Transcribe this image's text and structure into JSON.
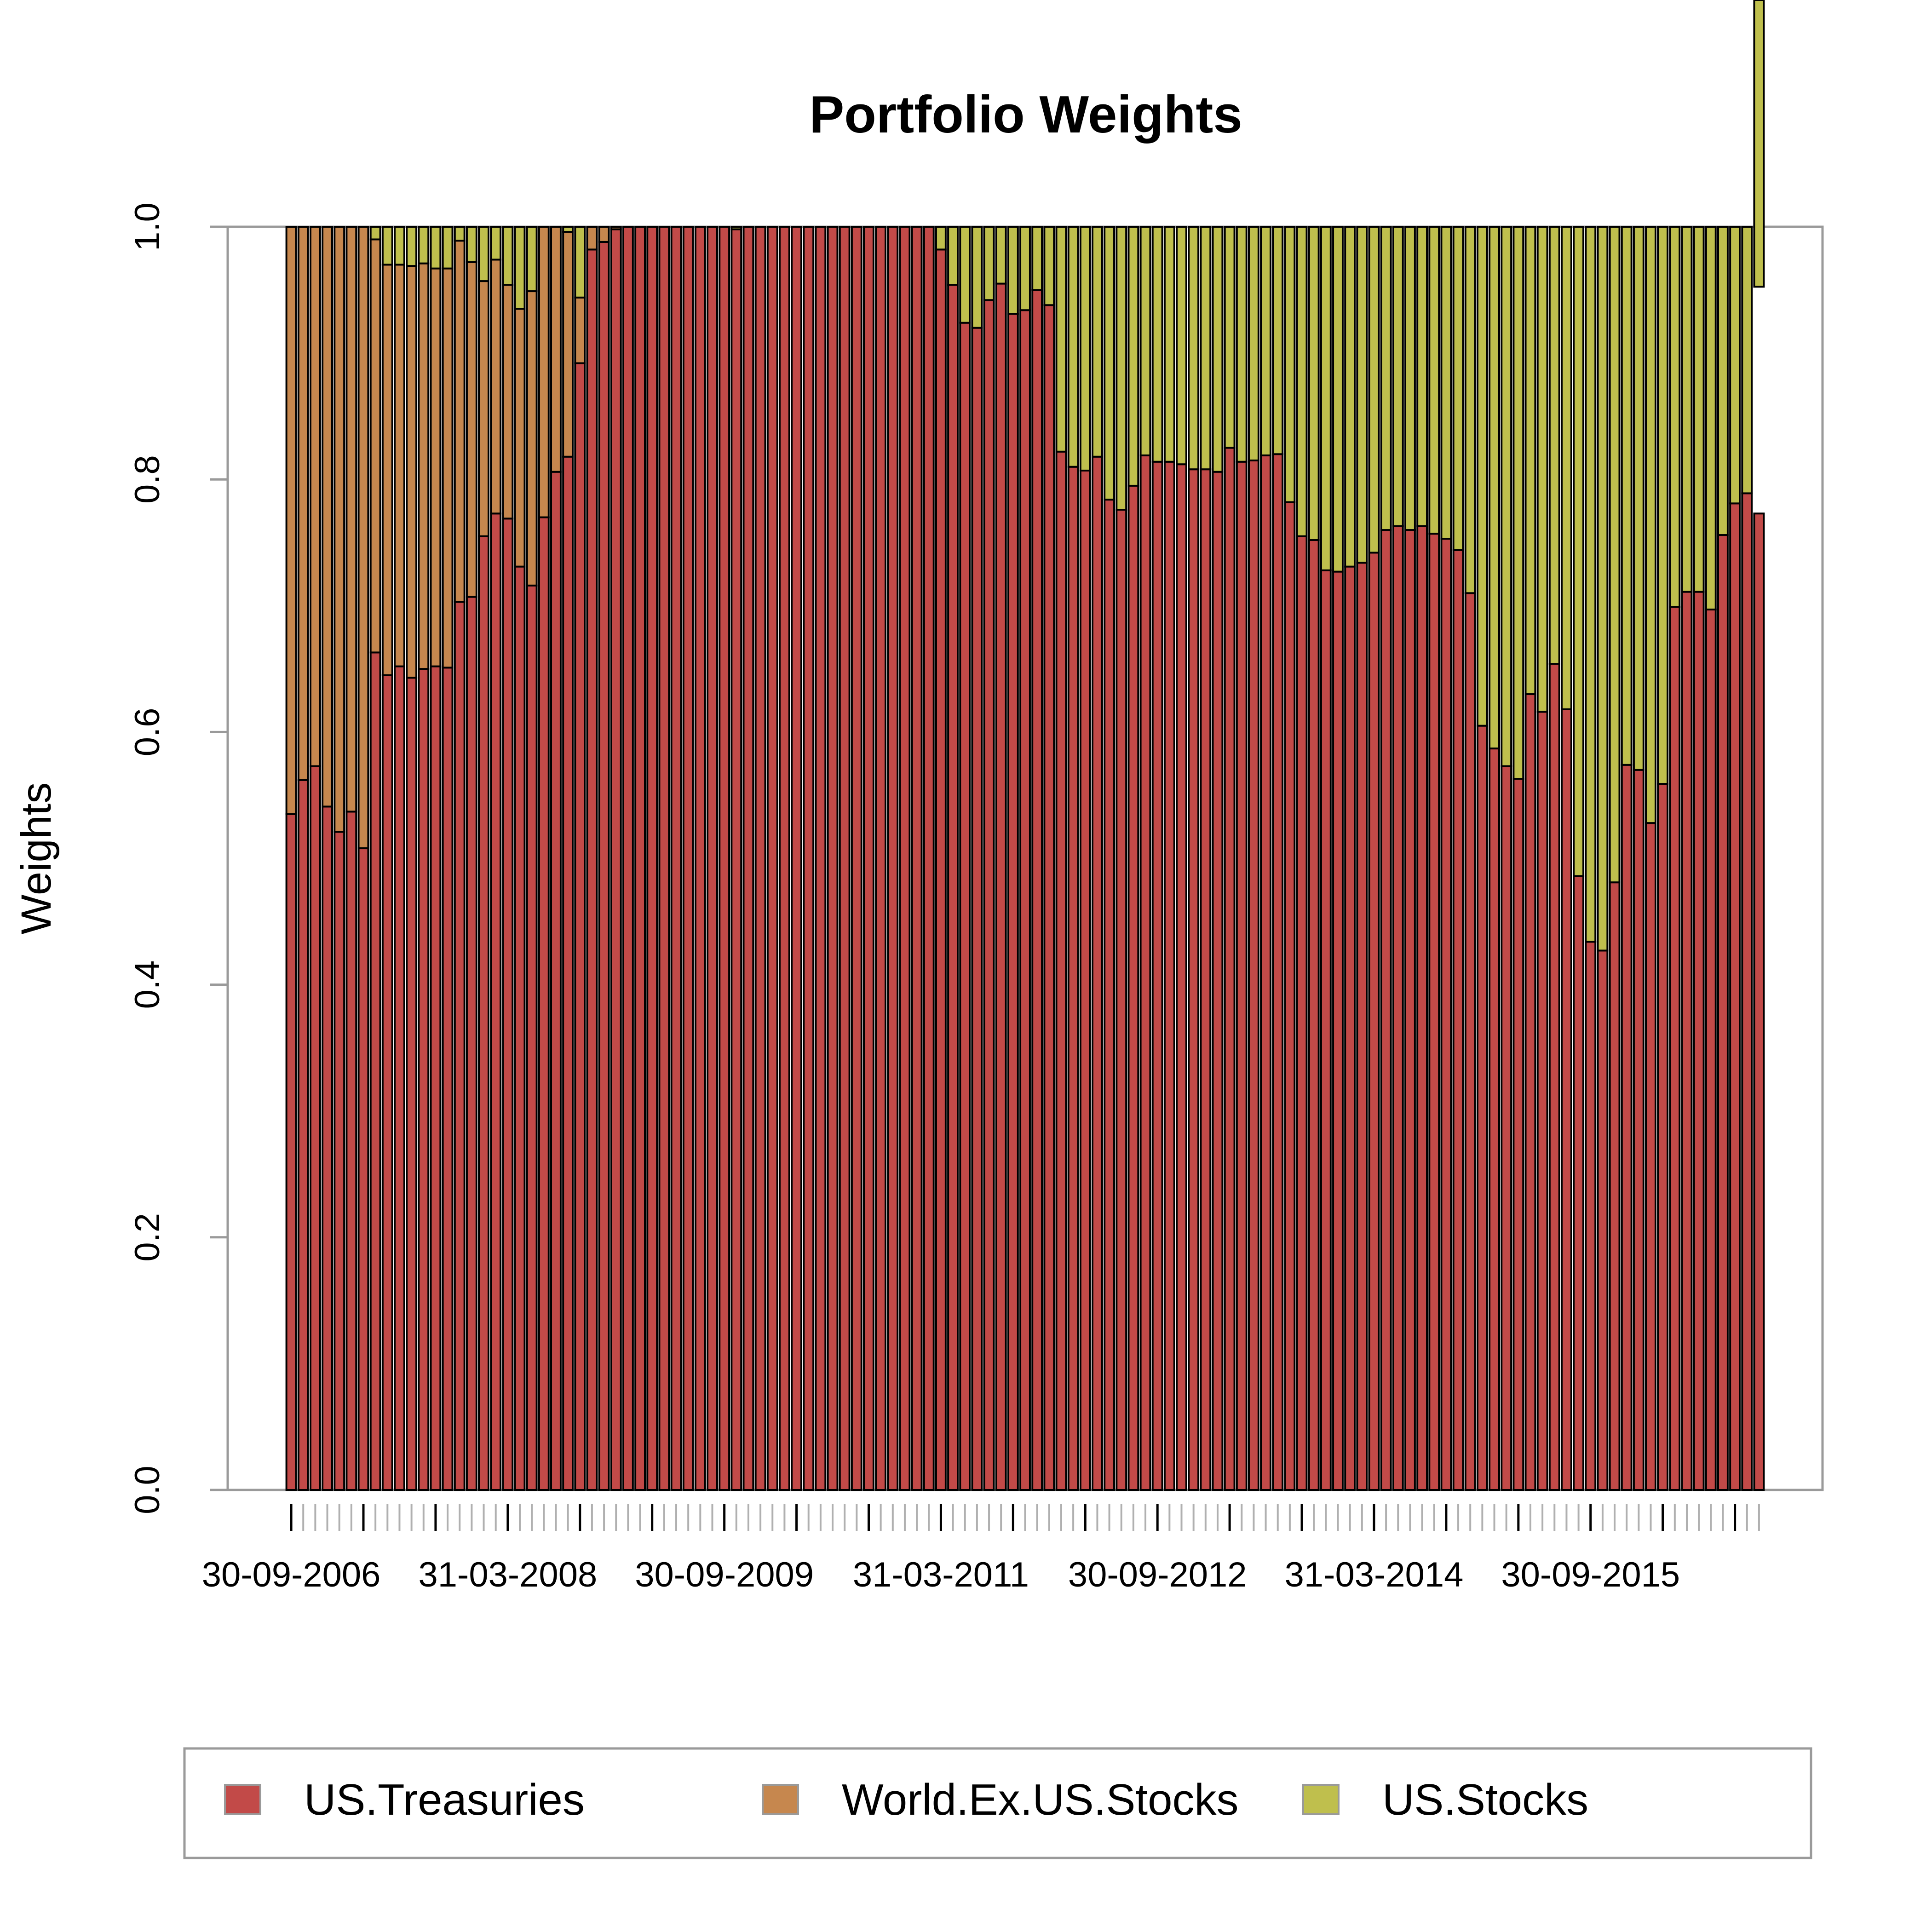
{
  "chart_data": {
    "type": "bar",
    "stacked": true,
    "title": "Portfolio Weights",
    "ylabel": "Weights",
    "xlabel": "",
    "ylim": [
      0,
      1
    ],
    "yticks": [
      "0.0",
      "0.2",
      "0.4",
      "0.6",
      "0.8",
      "1.0"
    ],
    "xtick_labels": [
      "30-09-2006",
      "31-03-2008",
      "30-09-2009",
      "31-03-2011",
      "30-09-2012",
      "31-03-2014",
      "30-09-2015"
    ],
    "frequency": "monthly",
    "start_month": "30-09-2006",
    "legend_position": "bottom",
    "colors": {
      "US.Treasuries": "#c24a48",
      "World.Ex.US.Stocks": "#c6874e",
      "US.Stocks": "#bfbf4d"
    },
    "series": [
      {
        "name": "US.Treasuries",
        "values": [
          0.535,
          0.562,
          0.573,
          0.541,
          0.521,
          0.537,
          0.508,
          0.663,
          0.645,
          0.652,
          0.643,
          0.65,
          0.652,
          0.651,
          0.703,
          0.707,
          0.755,
          0.773,
          0.769,
          0.731,
          0.716,
          0.77,
          0.806,
          0.818,
          0.892,
          0.982,
          0.988,
          0.998,
          1,
          1,
          1,
          1,
          1,
          1,
          1,
          1,
          1,
          0.998,
          1,
          1,
          1,
          1,
          1,
          1,
          1,
          1,
          1,
          1,
          1,
          1,
          1,
          1,
          1,
          1,
          0.982,
          0.954,
          0.924,
          0.92,
          0.942,
          0.955,
          0.931,
          0.934,
          0.95,
          0.938,
          0.822,
          0.81,
          0.807,
          0.818,
          0.784,
          0.776,
          0.795,
          0.819,
          0.814,
          0.814,
          0.812,
          0.808,
          0.808,
          0.806,
          0.825,
          0.814,
          0.815,
          0.819,
          0.82,
          0.782,
          0.755,
          0.752,
          0.728,
          0.727,
          0.731,
          0.734,
          0.742,
          0.76,
          0.763,
          0.76,
          0.763,
          0.757,
          0.753,
          0.744,
          0.71,
          0.605,
          0.587,
          0.573,
          0.563,
          0.63,
          0.616,
          0.654,
          0.618,
          0.486,
          0.434,
          0.427,
          0.481,
          0.574,
          0.57,
          0.528,
          0.559,
          0.699,
          0.711,
          0.711,
          0.697,
          0.756,
          0.781,
          0.789,
          0.773
        ]
      },
      {
        "name": "World.Ex.US.Stocks",
        "values": [
          0.465,
          0.438,
          0.427,
          0.459,
          0.479,
          0.463,
          0.492,
          0.327,
          0.325,
          0.318,
          0.326,
          0.321,
          0.315,
          0.316,
          0.286,
          0.265,
          0.202,
          0.201,
          0.185,
          0.204,
          0.233,
          0.23,
          0.194,
          0.178,
          0.052,
          0.018,
          0.012,
          0.002,
          0,
          0,
          0,
          0,
          0,
          0,
          0,
          0,
          0,
          0,
          0,
          0,
          0,
          0,
          0,
          0,
          0,
          0,
          0,
          0,
          0,
          0,
          0,
          0,
          0,
          0,
          0,
          0,
          0,
          0,
          0,
          0,
          0,
          0,
          0,
          0,
          0,
          0,
          0,
          0,
          0,
          0,
          0,
          0,
          0,
          0,
          0,
          0,
          0,
          0,
          0,
          0,
          0,
          0,
          0,
          0,
          0,
          0,
          0,
          0,
          0,
          0,
          0,
          0,
          0,
          0,
          0,
          0,
          0,
          0,
          0,
          0,
          0,
          0,
          0,
          0,
          0,
          0,
          0,
          0,
          0,
          0,
          0,
          0,
          0,
          0,
          0,
          0,
          0,
          0,
          0,
          0,
          0,
          0
        ]
      },
      {
        "name": "US.Stocks",
        "values": [
          0,
          0,
          0,
          0,
          0,
          0,
          0,
          0.01,
          0.03,
          0.03,
          0.031,
          0.029,
          0.033,
          0.033,
          0.011,
          0.028,
          0.043,
          0.026,
          0.046,
          0.065,
          0.051,
          0,
          0,
          0.004,
          0.056,
          0,
          0,
          0,
          0,
          0,
          0,
          0,
          0,
          0,
          0,
          0,
          0,
          0.002,
          0,
          0,
          0,
          0,
          0,
          0,
          0,
          0,
          0,
          0,
          0,
          0,
          0,
          0,
          0,
          0,
          0.018,
          0.046,
          0.076,
          0.08,
          0.058,
          0.045,
          0.069,
          0.066,
          0.05,
          0.062,
          0.178,
          0.19,
          0.193,
          0.182,
          0.216,
          0.224,
          0.205,
          0.181,
          0.186,
          0.186,
          0.188,
          0.192,
          0.192,
          0.194,
          0.175,
          0.186,
          0.185,
          0.181,
          0.18,
          0.218,
          0.245,
          0.248,
          0.272,
          0.273,
          0.269,
          0.266,
          0.258,
          0.24,
          0.237,
          0.24,
          0.237,
          0.243,
          0.247,
          0.256,
          0.29,
          0.395,
          0.413,
          0.427,
          0.437,
          0.37,
          0.384,
          0.346,
          0.382,
          0.514,
          0.566,
          0.573,
          0.519,
          0.426,
          0.43,
          0.472,
          0.441,
          0.301,
          0.289,
          0.289,
          0.303,
          0.244,
          0.219,
          0.211,
          0.227
        ]
      }
    ]
  }
}
